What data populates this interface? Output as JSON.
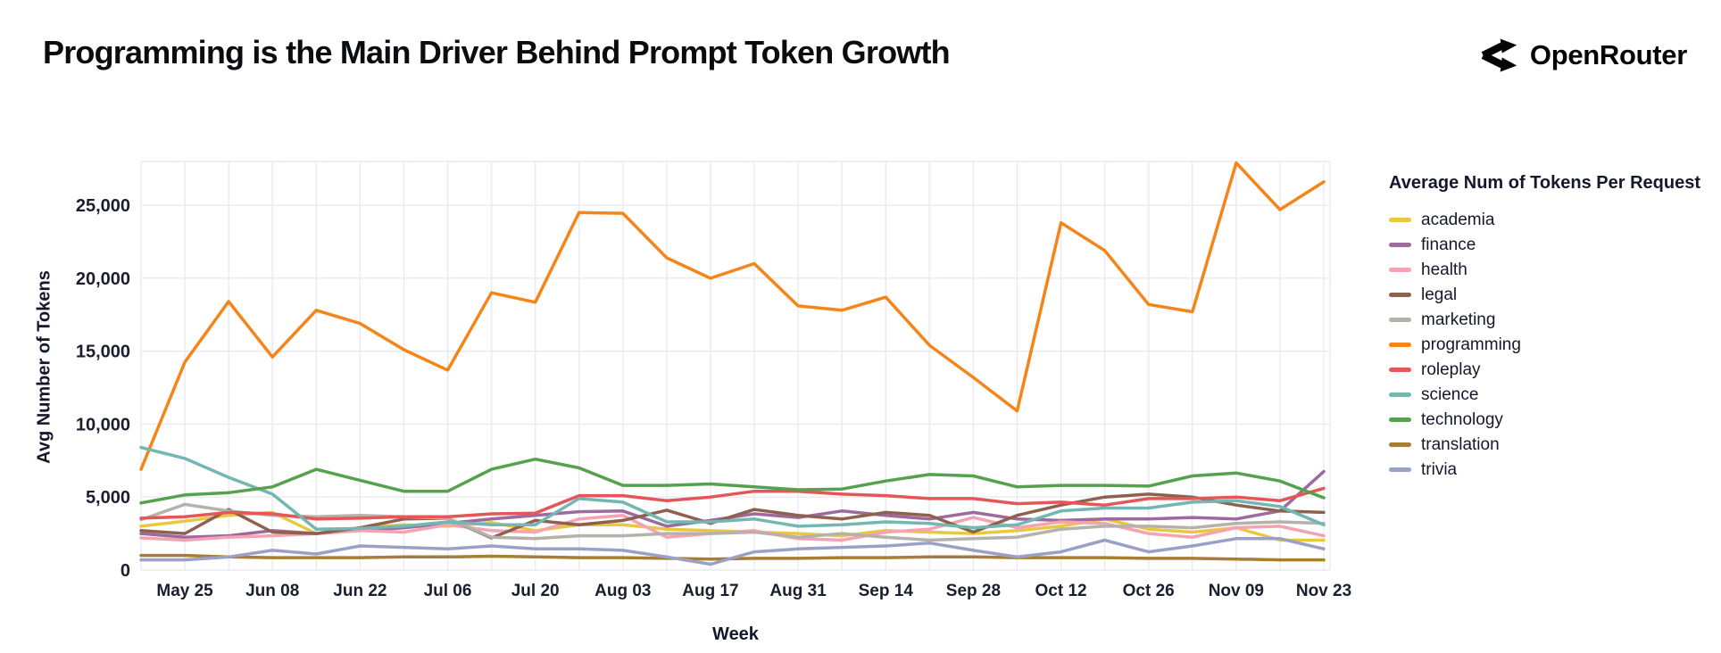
{
  "header": {
    "title": "Programming is the Main Driver Behind Prompt Token Growth",
    "logo_text": "OpenRouter"
  },
  "chart_data": {
    "type": "line",
    "title": "Programming is the Main Driver Behind Prompt Token Growth",
    "xlabel": "Week",
    "ylabel": "Avg Number of Tokens",
    "legend_title": "Average Num of Tokens Per Request",
    "legend_position": "right",
    "grid": true,
    "ylim": [
      0,
      28000
    ],
    "yticks": [
      0,
      5000,
      10000,
      15000,
      20000,
      25000
    ],
    "x": [
      "May 18",
      "May 25",
      "Jun 01",
      "Jun 08",
      "Jun 15",
      "Jun 22",
      "Jun 29",
      "Jul 06",
      "Jul 13",
      "Jul 20",
      "Jul 27",
      "Aug 03",
      "Aug 10",
      "Aug 17",
      "Aug 24",
      "Aug 31",
      "Sep 07",
      "Sep 14",
      "Sep 21",
      "Sep 28",
      "Oct 05",
      "Oct 12",
      "Oct 19",
      "Oct 26",
      "Nov 02",
      "Nov 09",
      "Nov 16",
      "Nov 23"
    ],
    "x_ticks_shown": [
      "May 25",
      "Jun 08",
      "Jun 22",
      "Jul 06",
      "Jul 20",
      "Aug 03",
      "Aug 17",
      "Aug 31",
      "Sep 14",
      "Sep 28",
      "Oct 12",
      "Oct 26",
      "Nov 09",
      "Nov 23"
    ],
    "series": [
      {
        "name": "academia",
        "color": "#e9c840",
        "values": [
          3000,
          3350,
          3750,
          3950,
          2500,
          2900,
          3100,
          3000,
          3250,
          2700,
          3100,
          3100,
          2800,
          2700,
          2600,
          2500,
          2350,
          2700,
          2600,
          2500,
          2700,
          3000,
          3500,
          2800,
          2600,
          2900,
          2050,
          2050
        ]
      },
      {
        "name": "finance",
        "color": "#9d6a9d",
        "values": [
          2500,
          2250,
          2350,
          2700,
          2500,
          2700,
          2900,
          3200,
          3500,
          3750,
          4000,
          4050,
          3000,
          3400,
          3850,
          3600,
          4050,
          3750,
          3500,
          3950,
          3500,
          3400,
          3500,
          3500,
          3600,
          3500,
          4050,
          6750
        ]
      },
      {
        "name": "health",
        "color": "#f5a3b2",
        "values": [
          2200,
          2050,
          2250,
          2350,
          2500,
          2700,
          2600,
          3100,
          2700,
          2600,
          3500,
          3750,
          2250,
          2500,
          2700,
          2150,
          2050,
          2600,
          2800,
          3600,
          2900,
          3300,
          3200,
          2500,
          2250,
          2900,
          3000,
          2350
        ]
      },
      {
        "name": "legal",
        "color": "#8e614e",
        "values": [
          2700,
          2500,
          4150,
          2600,
          2500,
          2900,
          3500,
          3550,
          2200,
          3400,
          3100,
          3400,
          4100,
          3200,
          4150,
          3750,
          3500,
          3950,
          3750,
          2600,
          3750,
          4450,
          5000,
          5200,
          5000,
          4450,
          4050,
          3950
        ]
      },
      {
        "name": "marketing",
        "color": "#b6b1aa",
        "values": [
          3450,
          4500,
          4050,
          3750,
          3650,
          3750,
          3650,
          3550,
          2250,
          2150,
          2350,
          2350,
          2500,
          2500,
          2600,
          2250,
          2500,
          2250,
          2050,
          2150,
          2250,
          2800,
          3000,
          3000,
          2900,
          3200,
          3300,
          3200
        ]
      },
      {
        "name": "programming",
        "color": "#f58518",
        "values": [
          6900,
          14250,
          18400,
          14600,
          17800,
          16900,
          15100,
          13700,
          19000,
          18350,
          24500,
          24450,
          21400,
          20000,
          21000,
          18100,
          17800,
          18700,
          15400,
          13200,
          10900,
          23800,
          21900,
          18200,
          17700,
          27900,
          24700,
          26600
        ]
      },
      {
        "name": "roleplay",
        "color": "#e45756",
        "values": [
          3550,
          3650,
          3950,
          3850,
          3500,
          3550,
          3650,
          3650,
          3850,
          3900,
          5100,
          5100,
          4750,
          5000,
          5400,
          5400,
          5200,
          5100,
          4900,
          4900,
          4550,
          4650,
          4450,
          4900,
          4900,
          5000,
          4750,
          5600
        ]
      },
      {
        "name": "science",
        "color": "#72b7b2",
        "values": [
          8400,
          7650,
          6350,
          5200,
          2800,
          2850,
          3000,
          3300,
          3100,
          3100,
          4900,
          4650,
          3300,
          3300,
          3500,
          3000,
          3100,
          3300,
          3200,
          2900,
          3100,
          4050,
          4250,
          4250,
          4650,
          4750,
          4350,
          3100
        ]
      },
      {
        "name": "technology",
        "color": "#54a24b",
        "values": [
          4600,
          5150,
          5300,
          5700,
          6900,
          6150,
          5400,
          5400,
          6900,
          7600,
          7000,
          5800,
          5800,
          5900,
          5700,
          5500,
          5550,
          6100,
          6550,
          6450,
          5700,
          5800,
          5800,
          5750,
          6450,
          6650,
          6100,
          4950
        ]
      },
      {
        "name": "translation",
        "color": "#a87d34",
        "values": [
          1000,
          1000,
          900,
          850,
          850,
          850,
          900,
          900,
          950,
          900,
          850,
          850,
          800,
          750,
          800,
          800,
          850,
          850,
          900,
          900,
          850,
          850,
          850,
          800,
          800,
          750,
          700,
          700
        ]
      },
      {
        "name": "trivia",
        "color": "#9ba1c6",
        "values": [
          700,
          700,
          900,
          1350,
          1100,
          1650,
          1550,
          1450,
          1650,
          1450,
          1450,
          1350,
          900,
          400,
          1250,
          1450,
          1550,
          1650,
          1850,
          1350,
          900,
          1250,
          2050,
          1250,
          1650,
          2150,
          2150,
          1450
        ]
      }
    ]
  }
}
